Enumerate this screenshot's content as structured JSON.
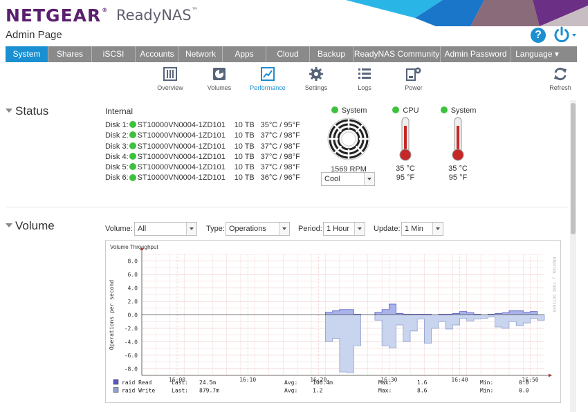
{
  "header": {
    "logo": "NETGEAR",
    "logo_mark": "®",
    "product": "ReadyNAS",
    "product_mark": "™",
    "subtitle": "Admin Page",
    "help_symbol": "?",
    "icons": [
      "help-icon",
      "power-icon"
    ]
  },
  "nav": {
    "tabs": [
      {
        "label": "System",
        "active": true
      },
      {
        "label": "Shares"
      },
      {
        "label": "iSCSI"
      },
      {
        "label": "Accounts"
      },
      {
        "label": "Network"
      },
      {
        "label": "Apps"
      },
      {
        "label": "Cloud"
      },
      {
        "label": "Backup"
      },
      {
        "label": "ReadyNAS Community"
      },
      {
        "label": "Admin Password"
      },
      {
        "label": "Language ▾"
      }
    ]
  },
  "subnav": {
    "items": [
      {
        "label": "Overview",
        "icon": "overview-icon"
      },
      {
        "label": "Volumes",
        "icon": "volumes-icon"
      },
      {
        "label": "Performance",
        "icon": "performance-icon",
        "active": true
      },
      {
        "label": "Settings",
        "icon": "settings-icon"
      },
      {
        "label": "Logs",
        "icon": "logs-icon"
      },
      {
        "label": "Power",
        "icon": "power-settings-icon"
      },
      {
        "label": "Refresh",
        "icon": "refresh-icon"
      }
    ]
  },
  "status": {
    "title": "Status",
    "internal_label": "Internal",
    "disks": [
      {
        "label": "Disk 1:",
        "model": "ST10000VN0004-1ZD101",
        "size": "10 TB",
        "temp": "35°C / 95°F"
      },
      {
        "label": "Disk 2:",
        "model": "ST10000VN0004-1ZD101",
        "size": "10 TB",
        "temp": "37°C / 98°F"
      },
      {
        "label": "Disk 3:",
        "model": "ST10000VN0004-1ZD101",
        "size": "10 TB",
        "temp": "37°C / 98°F"
      },
      {
        "label": "Disk 4:",
        "model": "ST10000VN0004-1ZD101",
        "size": "10 TB",
        "temp": "37°C / 98°F"
      },
      {
        "label": "Disk 5:",
        "model": "ST10000VN0004-1ZD101",
        "size": "10 TB",
        "temp": "37°C / 98°F"
      },
      {
        "label": "Disk 6:",
        "model": "ST10000VN0004-1ZD101",
        "size": "10 TB",
        "temp": "36°C / 96°F"
      }
    ],
    "fan": {
      "label": "System",
      "rpm": "1569 RPM",
      "mode": "Cool"
    },
    "cpu": {
      "label": "CPU",
      "celsius": "35 °C",
      "fahrenheit": "95 °F"
    },
    "system_temp": {
      "label": "System",
      "celsius": "35 °C",
      "fahrenheit": "95 °F"
    },
    "status_color": "#3ec13e"
  },
  "volume": {
    "title": "Volume",
    "filters": {
      "volume_label": "Volume:",
      "volume_value": "All",
      "type_label": "Type:",
      "type_value": "Operations",
      "period_label": "Period:",
      "period_value": "1 Hour",
      "update_label": "Update:",
      "update_value": "1 Min"
    }
  },
  "chart_data": {
    "type": "area",
    "title": "Volume Throughput",
    "ylabel": "Operations per second",
    "watermark": "RRDTOOL / TOBI OETIKER",
    "ylim": [
      -9,
      9
    ],
    "yticks": [
      8.0,
      6.0,
      4.0,
      2.0,
      0.0,
      -2.0,
      -4.0,
      -6.0,
      -8.0
    ],
    "ytick_labels": [
      "8.0",
      "6.0",
      "4.0",
      "2.0",
      "0.0",
      "-2.0",
      "-4.0",
      "-6.0",
      "-8.0"
    ],
    "xlim": [
      "15:55",
      "16:52"
    ],
    "xticks": [
      "16:00",
      "16:10",
      "16:20",
      "16:30",
      "16:40",
      "16:50"
    ],
    "grid": true,
    "series": [
      {
        "name": "raid Read",
        "color": "#5858c4",
        "x": [
          "16:21",
          "16:22",
          "16:23",
          "16:24",
          "16:25",
          "16:26",
          "16:27",
          "16:28",
          "16:29",
          "16:30",
          "16:31",
          "16:32",
          "16:33",
          "16:34",
          "16:35",
          "16:36",
          "16:37",
          "16:38",
          "16:39",
          "16:40",
          "16:41",
          "16:42",
          "16:43",
          "16:44",
          "16:45",
          "16:46",
          "16:47",
          "16:48",
          "16:49",
          "16:50",
          "16:51"
        ],
        "values": [
          0.4,
          0.6,
          0.8,
          0.8,
          0.1,
          0.0,
          0.0,
          0.4,
          0.8,
          1.6,
          0.2,
          0.1,
          0.1,
          0.1,
          0.1,
          0.0,
          0.1,
          0.1,
          0.2,
          0.5,
          0.3,
          0.1,
          0.0,
          0.1,
          0.2,
          0.3,
          0.6,
          0.6,
          0.4,
          0.5,
          0.0
        ]
      },
      {
        "name": "raid Write",
        "color": "#8ea0cf",
        "x": [
          "16:21",
          "16:22",
          "16:23",
          "16:24",
          "16:25",
          "16:26",
          "16:27",
          "16:28",
          "16:29",
          "16:30",
          "16:31",
          "16:32",
          "16:33",
          "16:34",
          "16:35",
          "16:36",
          "16:37",
          "16:38",
          "16:39",
          "16:40",
          "16:41",
          "16:42",
          "16:43",
          "16:44",
          "16:45",
          "16:46",
          "16:47",
          "16:48",
          "16:49",
          "16:50",
          "16:51"
        ],
        "values": [
          -4.0,
          -3.5,
          -8.5,
          -8.6,
          -4.6,
          0.0,
          0.0,
          -0.8,
          -4.6,
          -4.9,
          -1.5,
          -4.0,
          -2.4,
          -0.6,
          -4.2,
          -2.0,
          -1.0,
          -2.1,
          -1.5,
          -0.5,
          -0.9,
          -0.6,
          -0.5,
          -0.3,
          -1.8,
          -2.0,
          -1.0,
          -1.6,
          -1.2,
          -0.5,
          -0.8
        ]
      }
    ],
    "legend": [
      {
        "name": "raid Read",
        "color": "#5858c4",
        "last_label": "Last:",
        "last": "24.5m",
        "avg_label": "Avg:",
        "avg": "106.4m",
        "max_label": "Max:",
        "max": "1.6",
        "min_label": "Min:",
        "min": "0.0"
      },
      {
        "name": "raid Write",
        "color": "#8ea0cf",
        "last_label": "Last:",
        "last": "879.7m",
        "avg_label": "Avg:",
        "avg": "1.2",
        "max_label": "Max:",
        "max": "8.6",
        "min_label": "Min:",
        "min": "0.0"
      }
    ],
    "legend_placement": "bottom"
  }
}
